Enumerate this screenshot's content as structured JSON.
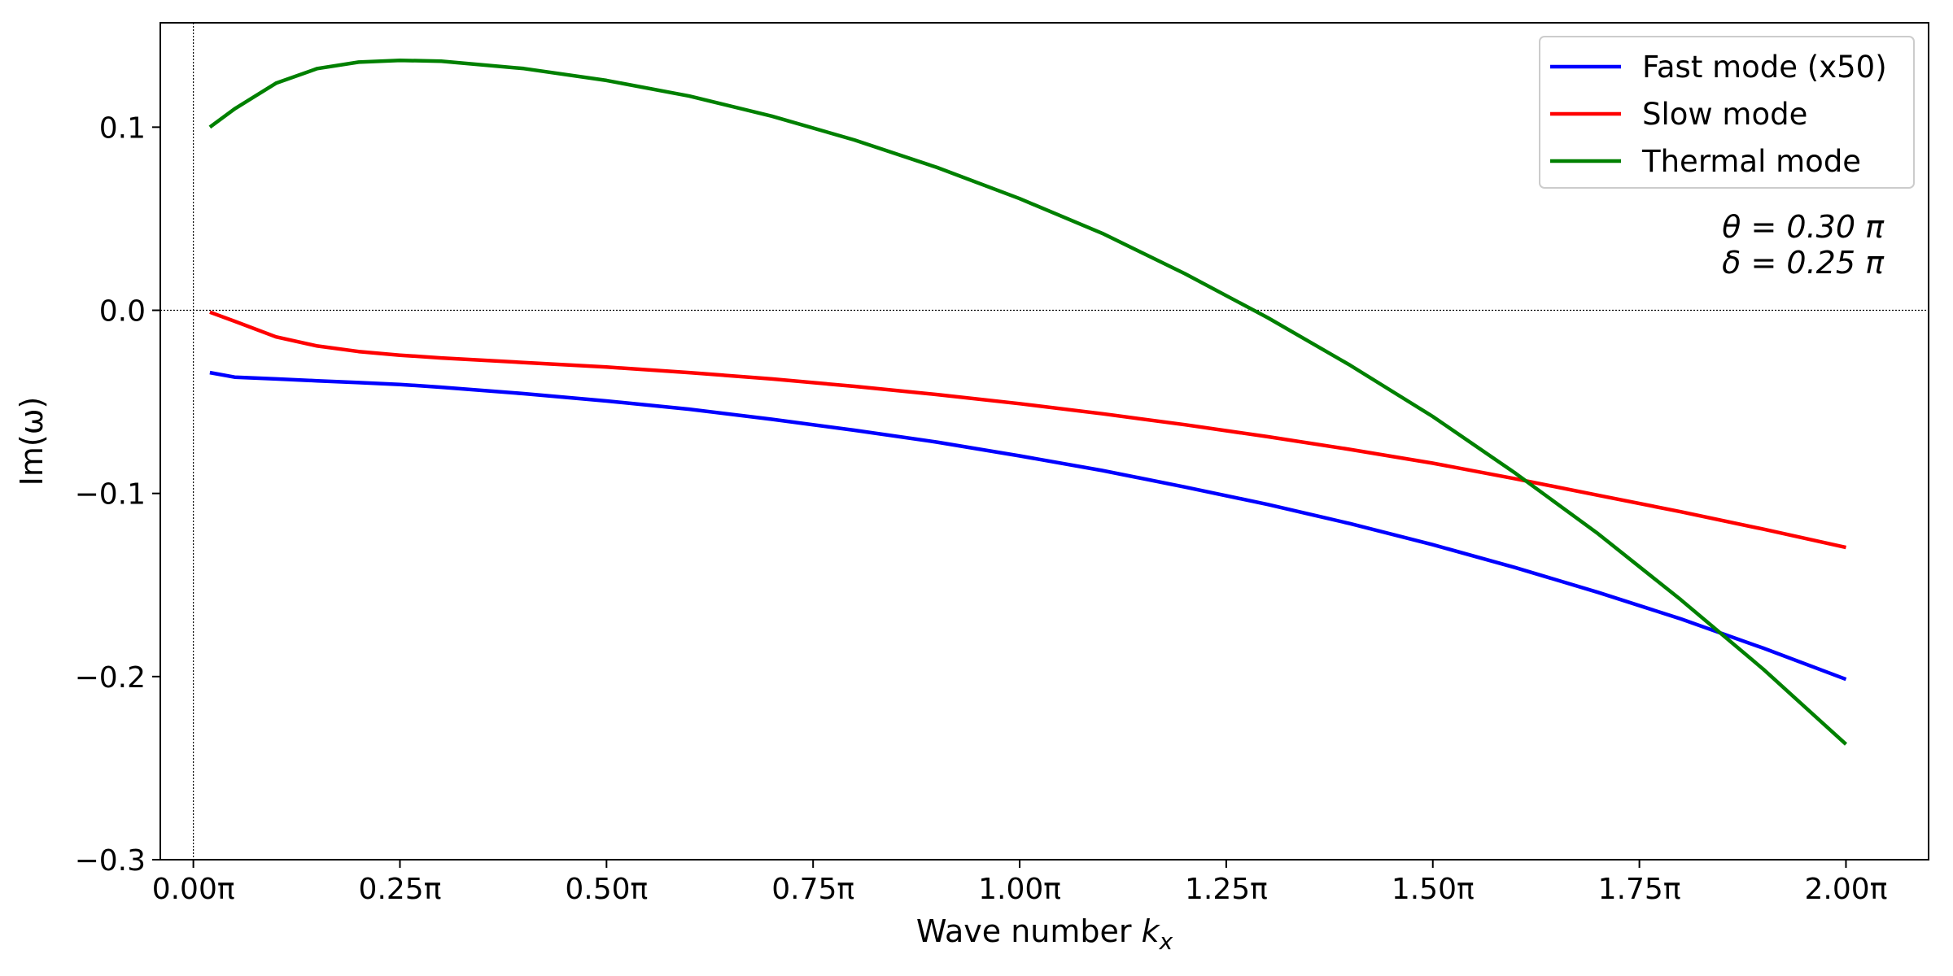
{
  "chart_data": {
    "type": "line",
    "xlabel": "Wave number k_x",
    "xlabel_main": "Wave number ",
    "xlabel_var": "k",
    "xlabel_sub": "x",
    "ylabel": "Im(ω)",
    "xlim": [
      -0.04,
      2.1
    ],
    "ylim": [
      -0.3,
      0.157
    ],
    "x_unit": "π",
    "xticks": [
      0.0,
      0.25,
      0.5,
      0.75,
      1.0,
      1.25,
      1.5,
      1.75,
      2.0
    ],
    "xtick_labels": [
      "0.00π",
      "0.25π",
      "0.50π",
      "0.75π",
      "1.00π",
      "1.25π",
      "1.50π",
      "1.75π",
      "2.00π"
    ],
    "yticks": [
      -0.3,
      -0.2,
      -0.1,
      0.0,
      0.1
    ],
    "ytick_labels": [
      "−0.3",
      "−0.2",
      "−0.1",
      "0.0",
      "0.1"
    ],
    "grid": false,
    "reference_lines": {
      "x": 0.0,
      "y": 0.0
    },
    "legend_position": "top-right",
    "annotation": [
      "θ = 0.30 π",
      "δ = 0.25 π"
    ],
    "x": [
      0.02,
      0.05,
      0.1,
      0.15,
      0.2,
      0.25,
      0.3,
      0.4,
      0.5,
      0.6,
      0.7,
      0.8,
      0.9,
      1.0,
      1.1,
      1.2,
      1.3,
      1.4,
      1.5,
      1.6,
      1.7,
      1.8,
      1.9,
      2.0
    ],
    "series": [
      {
        "name": "Fast mode (x50)",
        "color": "#0000ff",
        "values": [
          -0.034,
          -0.0365,
          -0.0375,
          -0.0385,
          -0.0395,
          -0.0405,
          -0.042,
          -0.0455,
          -0.0495,
          -0.054,
          -0.0595,
          -0.0655,
          -0.072,
          -0.0795,
          -0.0875,
          -0.0965,
          -0.106,
          -0.1165,
          -0.128,
          -0.1405,
          -0.154,
          -0.1685,
          -0.1845,
          -0.2015
        ]
      },
      {
        "name": "Slow mode",
        "color": "#ff0000",
        "values": [
          -0.001,
          -0.006,
          -0.0145,
          -0.0195,
          -0.0225,
          -0.0245,
          -0.026,
          -0.0285,
          -0.031,
          -0.034,
          -0.0375,
          -0.0415,
          -0.046,
          -0.051,
          -0.0565,
          -0.0625,
          -0.069,
          -0.076,
          -0.0835,
          -0.092,
          -0.101,
          -0.11,
          -0.1195,
          -0.1295
        ]
      },
      {
        "name": "Thermal mode",
        "color": "#008000",
        "values": [
          0.1,
          0.11,
          0.124,
          0.132,
          0.1355,
          0.1365,
          0.136,
          0.132,
          0.1255,
          0.117,
          0.106,
          0.093,
          0.078,
          0.061,
          0.042,
          0.02,
          -0.004,
          -0.03,
          -0.058,
          -0.089,
          -0.122,
          -0.158,
          -0.196,
          -0.237
        ]
      }
    ]
  }
}
